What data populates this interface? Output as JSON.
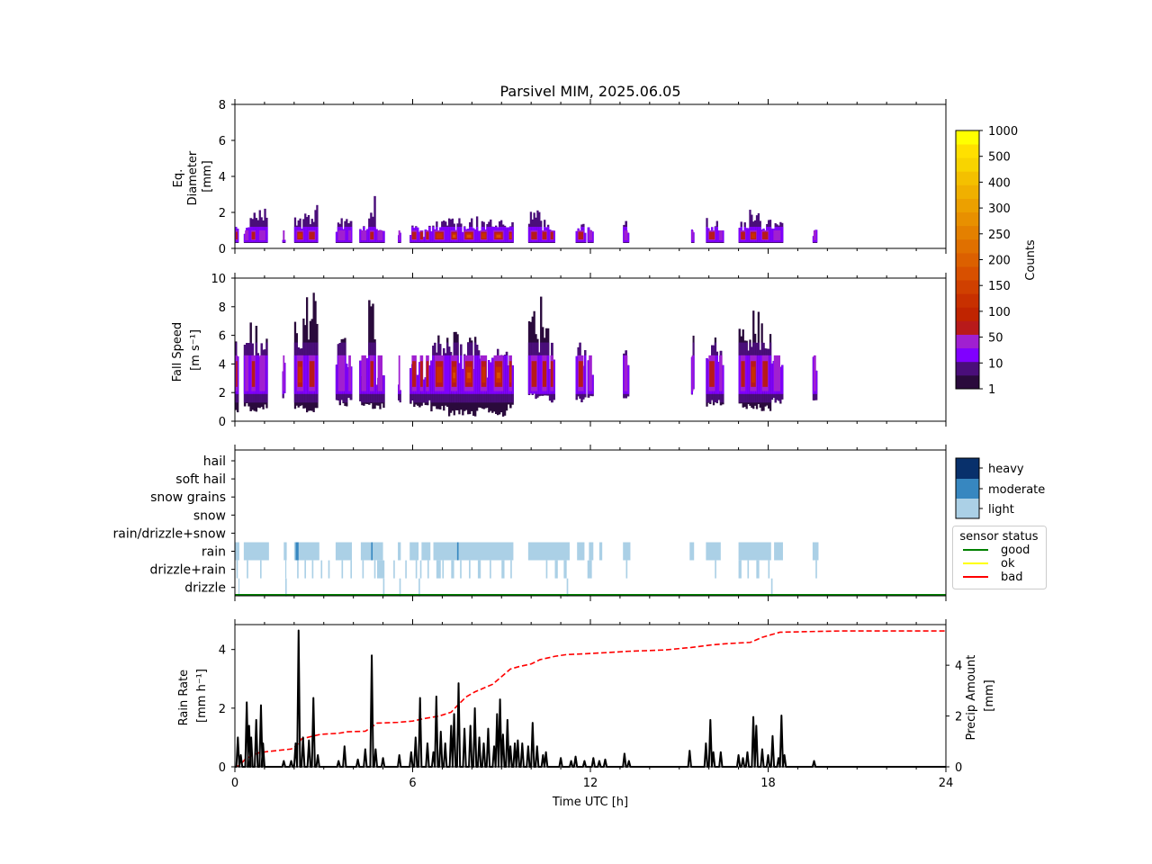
{
  "title": "Parsivel MIM, 2025.06.05",
  "colors": {
    "axis": "#000000",
    "rain_rate": "#000000",
    "accum": "#ff0000",
    "good": "#008000",
    "ok": "#ffff00",
    "bad": "#ff0000",
    "light": "#abd0e6",
    "moderate": "#3787c0",
    "heavy": "#08306b"
  },
  "colorbar": {
    "label": "Counts",
    "tick_labels": [
      "1",
      "10",
      "50",
      "100",
      "150",
      "200",
      "250",
      "300",
      "400",
      "500",
      "1000"
    ],
    "colors": [
      "#2a0a3c",
      "#4a0e7a",
      "#8000ff",
      "#a020d0",
      "#b81a1a",
      "#c02400",
      "#c83000",
      "#d04000",
      "#d85000",
      "#dc6000",
      "#e07000",
      "#e48000",
      "#e89000",
      "#eca000",
      "#f0b000",
      "#f4c000",
      "#f8d400",
      "#ffe000",
      "#ffff00"
    ]
  },
  "legend_class": [
    "heavy",
    "moderate",
    "light"
  ],
  "legend_status": {
    "title": "sensor status",
    "items": [
      "good",
      "ok",
      "bad"
    ]
  },
  "chart_data": [
    {
      "type": "heatmap",
      "panel": "diameter",
      "ylabel": [
        "Eq.",
        "Diameter",
        "[mm]"
      ],
      "ylim": [
        0,
        8
      ],
      "yticks": [
        "0",
        "2",
        "4",
        "6",
        "8"
      ],
      "xlim": [
        0,
        24
      ],
      "segments": [
        [
          0.0,
          0.12,
          1.8,
          1.0
        ],
        [
          0.3,
          0.5,
          1.6,
          0.9
        ],
        [
          0.5,
          0.75,
          2.0,
          1.0
        ],
        [
          0.75,
          1.1,
          2.3,
          0.9
        ],
        [
          1.6,
          1.7,
          0.9,
          0.6
        ],
        [
          2.0,
          2.4,
          2.0,
          1.6
        ],
        [
          2.4,
          2.8,
          2.5,
          1.2
        ],
        [
          3.4,
          3.8,
          1.7,
          0.9
        ],
        [
          3.8,
          3.95,
          1.6,
          0.7
        ],
        [
          4.2,
          4.5,
          1.5,
          0.8
        ],
        [
          4.5,
          4.75,
          3.0,
          1.4
        ],
        [
          4.75,
          5.05,
          1.2,
          0.7
        ],
        [
          5.5,
          5.6,
          1.0,
          0.6
        ],
        [
          5.9,
          6.2,
          1.3,
          1.0
        ],
        [
          6.2,
          6.4,
          1.0,
          1.4
        ],
        [
          6.4,
          6.6,
          1.4,
          1.0
        ],
        [
          6.6,
          7.2,
          1.6,
          1.6
        ],
        [
          7.2,
          7.6,
          1.8,
          2.0
        ],
        [
          7.6,
          8.2,
          1.8,
          2.6
        ],
        [
          8.2,
          8.6,
          1.6,
          1.6
        ],
        [
          8.6,
          9.2,
          1.7,
          2.6
        ],
        [
          9.2,
          9.4,
          1.5,
          1.6
        ],
        [
          9.9,
          10.3,
          2.2,
          1.4
        ],
        [
          10.3,
          10.6,
          1.6,
          1.0
        ],
        [
          10.6,
          10.8,
          1.3,
          1.2
        ],
        [
          11.5,
          11.85,
          1.5,
          1.0
        ],
        [
          11.9,
          12.1,
          1.2,
          0.8
        ],
        [
          13.1,
          13.3,
          1.6,
          0.9
        ],
        [
          15.4,
          15.5,
          1.6,
          0.7
        ],
        [
          15.9,
          16.3,
          1.7,
          1.1
        ],
        [
          16.3,
          16.5,
          1.2,
          0.9
        ],
        [
          17.0,
          17.3,
          1.7,
          1.0
        ],
        [
          17.3,
          17.7,
          2.2,
          1.5
        ],
        [
          17.7,
          18.1,
          1.8,
          1.2
        ],
        [
          18.1,
          18.5,
          1.6,
          0.9
        ],
        [
          19.5,
          19.65,
          1.3,
          0.8
        ]
      ]
    },
    {
      "type": "heatmap",
      "panel": "fall_speed",
      "ylabel": [
        "Fall Speed",
        "[m s⁻¹]"
      ],
      "ylim": [
        0,
        10
      ],
      "yticks": [
        "0",
        "2",
        "4",
        "6",
        "8",
        "10"
      ],
      "xlim": [
        0,
        24
      ],
      "segments": [
        [
          0.0,
          0.12,
          7.0,
          0.5,
          1.0
        ],
        [
          0.3,
          0.5,
          6.0,
          0.8,
          0.9
        ],
        [
          0.5,
          0.75,
          7.0,
          0.5,
          1.0
        ],
        [
          0.75,
          1.1,
          7.0,
          0.8,
          0.9
        ],
        [
          1.6,
          1.7,
          4.5,
          1.5,
          0.6
        ],
        [
          2.0,
          2.4,
          8.0,
          0.8,
          1.6
        ],
        [
          2.4,
          2.8,
          9.0,
          0.6,
          1.2
        ],
        [
          3.4,
          3.8,
          6.0,
          1.0,
          0.9
        ],
        [
          3.8,
          3.95,
          5.0,
          1.2,
          0.7
        ],
        [
          4.2,
          4.5,
          5.0,
          1.0,
          0.8
        ],
        [
          4.5,
          4.75,
          9.0,
          0.8,
          1.4
        ],
        [
          4.75,
          5.05,
          4.0,
          0.8,
          0.7
        ],
        [
          5.5,
          5.6,
          3.5,
          1.2,
          0.6
        ],
        [
          5.9,
          6.2,
          4.5,
          1.0,
          1.0
        ],
        [
          6.2,
          6.4,
          4.5,
          0.8,
          1.4
        ],
        [
          6.4,
          6.6,
          5.0,
          1.0,
          1.0
        ],
        [
          6.6,
          7.2,
          6.0,
          0.6,
          1.6
        ],
        [
          7.2,
          7.6,
          6.5,
          0.3,
          2.0
        ],
        [
          7.6,
          8.2,
          6.0,
          0.3,
          2.6
        ],
        [
          8.2,
          8.6,
          5.0,
          0.5,
          1.6
        ],
        [
          8.6,
          9.2,
          6.0,
          0.3,
          2.6
        ],
        [
          9.2,
          9.4,
          5.0,
          0.8,
          1.6
        ],
        [
          9.9,
          10.3,
          8.0,
          1.5,
          1.4
        ],
        [
          10.3,
          10.6,
          9.0,
          1.5,
          1.0
        ],
        [
          10.6,
          10.8,
          5.5,
          1.2,
          1.2
        ],
        [
          11.5,
          11.85,
          6.0,
          1.3,
          1.0
        ],
        [
          11.9,
          12.1,
          5.0,
          1.5,
          0.8
        ],
        [
          13.1,
          13.3,
          5.0,
          1.5,
          0.9
        ],
        [
          15.4,
          15.5,
          7.0,
          1.8,
          0.7
        ],
        [
          15.9,
          16.3,
          6.0,
          1.0,
          1.1
        ],
        [
          16.3,
          16.5,
          5.0,
          1.0,
          0.9
        ],
        [
          17.0,
          17.3,
          7.0,
          0.8,
          1.0
        ],
        [
          17.3,
          17.7,
          8.0,
          0.8,
          1.5
        ],
        [
          17.7,
          18.1,
          7.0,
          0.6,
          1.2
        ],
        [
          18.1,
          18.5,
          5.0,
          1.2,
          0.9
        ],
        [
          19.5,
          19.65,
          5.0,
          1.2,
          0.8
        ]
      ]
    },
    {
      "type": "heatmap",
      "panel": "precip_type",
      "categories": [
        "hail",
        "soft hail",
        "snow grains",
        "snow",
        "rain/drizzle+snow",
        "rain",
        "drizzle+rain",
        "drizzle"
      ],
      "xlim": [
        0,
        24
      ],
      "rain_light": [
        [
          0.0,
          0.15
        ],
        [
          0.3,
          1.15
        ],
        [
          1.65,
          1.75
        ],
        [
          2.0,
          2.85
        ],
        [
          3.4,
          3.95
        ],
        [
          4.25,
          5.0
        ],
        [
          5.5,
          5.6
        ],
        [
          5.9,
          6.2
        ],
        [
          6.3,
          6.6
        ],
        [
          6.7,
          9.4
        ],
        [
          9.9,
          11.3
        ],
        [
          11.55,
          11.8
        ],
        [
          11.95,
          12.1
        ],
        [
          12.3,
          12.4
        ],
        [
          13.1,
          13.35
        ],
        [
          15.35,
          15.5
        ],
        [
          15.9,
          16.4
        ],
        [
          17.0,
          18.1
        ],
        [
          18.2,
          18.5
        ],
        [
          19.5,
          19.7
        ]
      ],
      "rain_moderate": [
        [
          2.05,
          2.15
        ],
        [
          4.6,
          4.65
        ],
        [
          7.5,
          7.55
        ]
      ],
      "drizzle_rain": [
        [
          0.05,
          0.1
        ],
        [
          0.4,
          0.45
        ],
        [
          0.85,
          0.9
        ],
        [
          1.7,
          1.73
        ],
        [
          2.1,
          2.15
        ],
        [
          2.35,
          2.4
        ],
        [
          2.6,
          2.65
        ],
        [
          2.9,
          2.95
        ],
        [
          3.15,
          3.2
        ],
        [
          3.6,
          3.65
        ],
        [
          3.9,
          3.95
        ],
        [
          4.3,
          4.35
        ],
        [
          4.7,
          4.75
        ],
        [
          4.8,
          5.05
        ],
        [
          5.35,
          5.4
        ],
        [
          5.75,
          5.8
        ],
        [
          6.1,
          6.15
        ],
        [
          6.25,
          6.3
        ],
        [
          6.5,
          6.55
        ],
        [
          6.8,
          6.95
        ],
        [
          7.0,
          7.05
        ],
        [
          7.3,
          7.4
        ],
        [
          7.6,
          7.65
        ],
        [
          7.9,
          7.95
        ],
        [
          8.2,
          8.3
        ],
        [
          8.6,
          8.65
        ],
        [
          9.0,
          9.1
        ],
        [
          9.3,
          9.35
        ],
        [
          10.5,
          10.55
        ],
        [
          10.8,
          10.9
        ],
        [
          11.1,
          11.2
        ],
        [
          11.9,
          12.05
        ],
        [
          13.2,
          13.25
        ],
        [
          16.2,
          16.25
        ],
        [
          17.0,
          17.1
        ],
        [
          17.3,
          17.35
        ],
        [
          17.6,
          17.7
        ],
        [
          18.0,
          18.05
        ],
        [
          19.6,
          19.65
        ]
      ],
      "drizzle": [
        [
          0.12,
          0.15
        ],
        [
          1.7,
          1.75
        ],
        [
          5.0,
          5.05
        ],
        [
          5.55,
          5.6
        ],
        [
          6.2,
          6.25
        ],
        [
          11.2,
          11.25
        ],
        [
          18.1,
          18.15
        ]
      ],
      "status": "good"
    },
    {
      "type": "line",
      "panel": "rain_rate",
      "ylabel": [
        "Rain Rate",
        "[mm h⁻¹]"
      ],
      "ylabel_right": [
        "Precip Amount",
        "[mm]"
      ],
      "xlabel": "Time UTC [h]",
      "xlim": [
        0,
        24
      ],
      "ylim": [
        0,
        4.85
      ],
      "ylim_right": [
        0,
        5.6
      ],
      "yticks": [
        "0",
        "2",
        "4"
      ],
      "yticks_right": [
        "0",
        "2",
        "4"
      ],
      "xticks": [
        "0",
        "6",
        "12",
        "18",
        "24"
      ],
      "rain_rate_peaks": [
        [
          0.1,
          1.0
        ],
        [
          0.2,
          0.4
        ],
        [
          0.4,
          2.2
        ],
        [
          0.48,
          1.4
        ],
        [
          0.55,
          1.0
        ],
        [
          0.72,
          1.6
        ],
        [
          0.88,
          2.1
        ],
        [
          0.95,
          0.8
        ],
        [
          1.65,
          0.2
        ],
        [
          1.9,
          0.2
        ],
        [
          2.05,
          0.8
        ],
        [
          2.15,
          4.65
        ],
        [
          2.3,
          1.0
        ],
        [
          2.5,
          0.9
        ],
        [
          2.65,
          2.35
        ],
        [
          2.8,
          0.4
        ],
        [
          3.5,
          0.2
        ],
        [
          3.7,
          0.7
        ],
        [
          4.15,
          0.25
        ],
        [
          4.4,
          0.6
        ],
        [
          4.62,
          3.8
        ],
        [
          4.75,
          0.6
        ],
        [
          5.0,
          0.3
        ],
        [
          5.55,
          0.4
        ],
        [
          5.95,
          0.5
        ],
        [
          6.1,
          1.0
        ],
        [
          6.25,
          2.35
        ],
        [
          6.5,
          0.8
        ],
        [
          6.7,
          0.5
        ],
        [
          6.8,
          2.4
        ],
        [
          6.95,
          1.2
        ],
        [
          7.1,
          0.8
        ],
        [
          7.3,
          1.4
        ],
        [
          7.4,
          1.8
        ],
        [
          7.55,
          2.85
        ],
        [
          7.75,
          1.3
        ],
        [
          7.95,
          1.4
        ],
        [
          8.1,
          2.0
        ],
        [
          8.25,
          1.0
        ],
        [
          8.4,
          0.8
        ],
        [
          8.55,
          1.3
        ],
        [
          8.75,
          0.7
        ],
        [
          8.85,
          1.8
        ],
        [
          8.95,
          2.3
        ],
        [
          9.05,
          1.1
        ],
        [
          9.2,
          1.6
        ],
        [
          9.3,
          0.7
        ],
        [
          9.45,
          0.8
        ],
        [
          9.55,
          0.9
        ],
        [
          9.7,
          0.8
        ],
        [
          9.9,
          0.7
        ],
        [
          10.05,
          1.5
        ],
        [
          10.2,
          0.7
        ],
        [
          10.4,
          0.4
        ],
        [
          10.5,
          0.5
        ],
        [
          11.0,
          0.3
        ],
        [
          11.35,
          0.2
        ],
        [
          11.5,
          0.35
        ],
        [
          11.8,
          0.2
        ],
        [
          12.1,
          0.3
        ],
        [
          12.3,
          0.2
        ],
        [
          12.5,
          0.25
        ],
        [
          13.15,
          0.45
        ],
        [
          13.3,
          0.2
        ],
        [
          15.35,
          0.55
        ],
        [
          15.9,
          0.8
        ],
        [
          16.05,
          1.6
        ],
        [
          16.15,
          0.5
        ],
        [
          16.4,
          0.5
        ],
        [
          17.0,
          0.4
        ],
        [
          17.15,
          0.3
        ],
        [
          17.3,
          0.5
        ],
        [
          17.5,
          1.7
        ],
        [
          17.6,
          1.4
        ],
        [
          17.8,
          0.6
        ],
        [
          18.0,
          0.4
        ],
        [
          18.15,
          1.05
        ],
        [
          18.35,
          0.3
        ],
        [
          18.45,
          1.75
        ],
        [
          18.55,
          0.4
        ],
        [
          19.55,
          0.2
        ]
      ],
      "precip_amount": [
        [
          0.0,
          0.0
        ],
        [
          0.15,
          0.05
        ],
        [
          0.35,
          0.3
        ],
        [
          0.6,
          0.45
        ],
        [
          0.8,
          0.55
        ],
        [
          1.1,
          0.6
        ],
        [
          1.9,
          0.7
        ],
        [
          2.1,
          0.85
        ],
        [
          2.25,
          1.1
        ],
        [
          2.6,
          1.2
        ],
        [
          2.9,
          1.28
        ],
        [
          3.5,
          1.32
        ],
        [
          3.8,
          1.38
        ],
        [
          4.4,
          1.4
        ],
        [
          4.6,
          1.55
        ],
        [
          4.8,
          1.72
        ],
        [
          5.5,
          1.75
        ],
        [
          6.0,
          1.8
        ],
        [
          6.4,
          1.9
        ],
        [
          6.9,
          2.0
        ],
        [
          7.3,
          2.15
        ],
        [
          7.5,
          2.4
        ],
        [
          7.8,
          2.75
        ],
        [
          8.1,
          2.95
        ],
        [
          8.4,
          3.1
        ],
        [
          8.7,
          3.25
        ],
        [
          9.0,
          3.55
        ],
        [
          9.3,
          3.85
        ],
        [
          9.6,
          3.95
        ],
        [
          10.0,
          4.05
        ],
        [
          10.3,
          4.22
        ],
        [
          10.8,
          4.35
        ],
        [
          11.2,
          4.42
        ],
        [
          11.8,
          4.45
        ],
        [
          12.6,
          4.5
        ],
        [
          13.3,
          4.55
        ],
        [
          14.5,
          4.6
        ],
        [
          15.4,
          4.7
        ],
        [
          16.1,
          4.8
        ],
        [
          16.6,
          4.85
        ],
        [
          17.4,
          4.9
        ],
        [
          17.8,
          5.1
        ],
        [
          18.1,
          5.2
        ],
        [
          18.4,
          5.3
        ],
        [
          19.6,
          5.33
        ],
        [
          20.5,
          5.35
        ],
        [
          24.0,
          5.35
        ]
      ]
    }
  ]
}
